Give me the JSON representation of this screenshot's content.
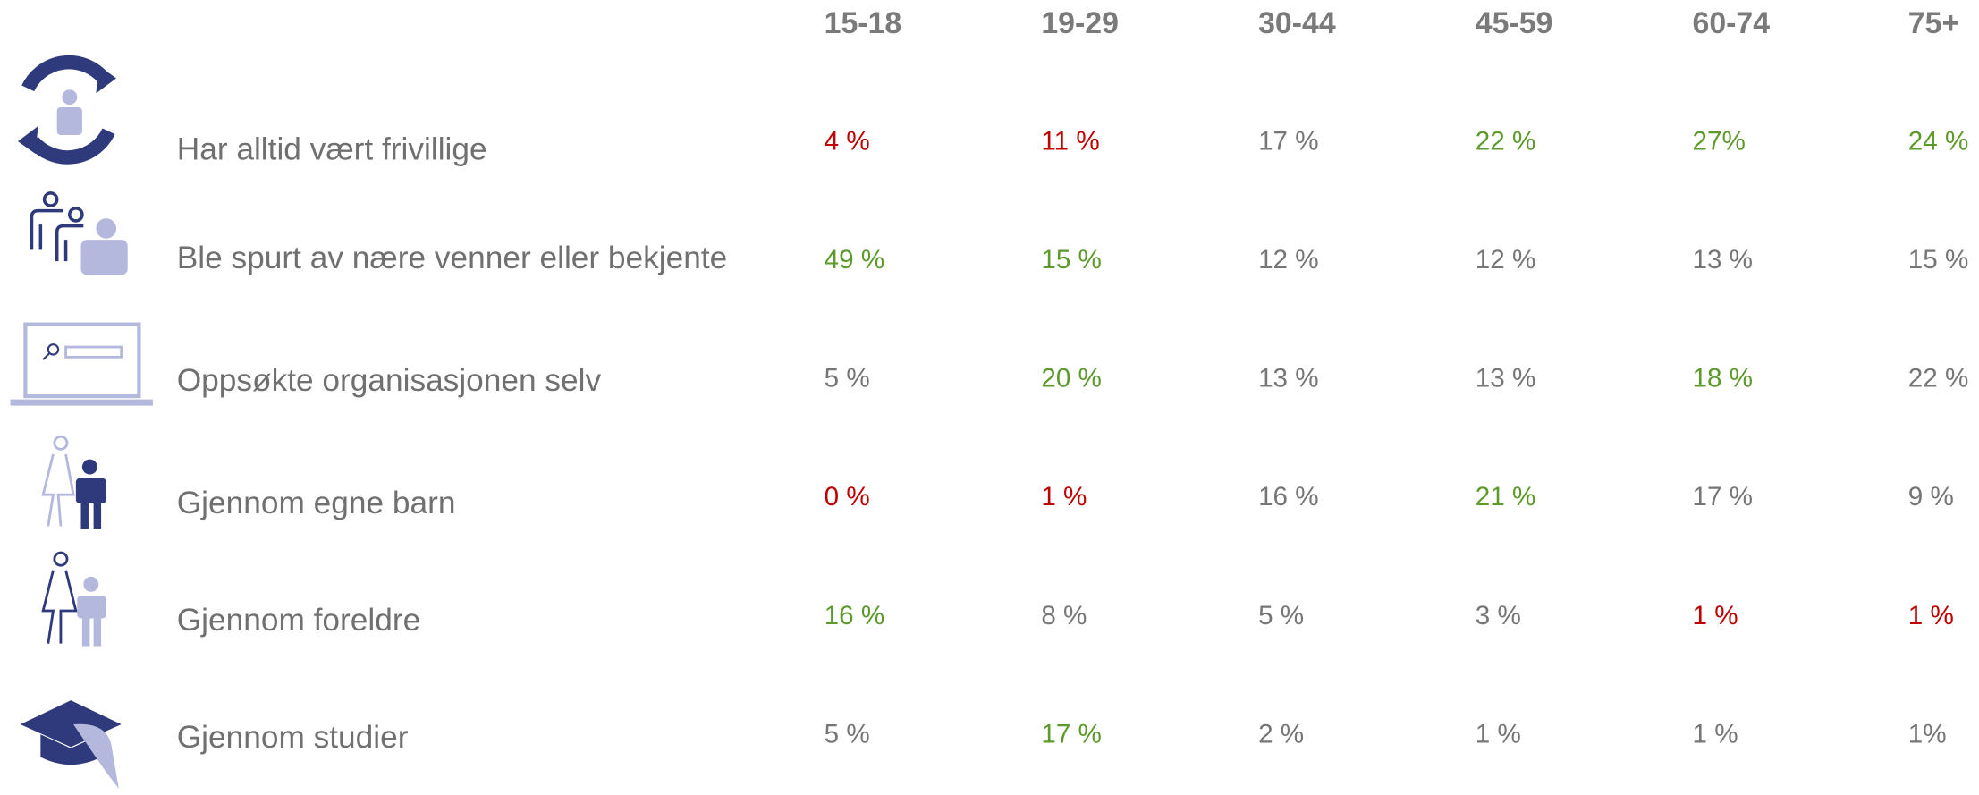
{
  "table": {
    "columns": [
      "15-18",
      "19-29",
      "30-44",
      "45-59",
      "60-74",
      "75+"
    ],
    "rows": [
      {
        "label": "Har alltid vært frivillige",
        "cells": [
          "4 %",
          "11 %",
          "17 %",
          "22 %",
          "27%",
          "24 %"
        ],
        "colors": [
          "#c00000",
          "#c00000",
          "#767676",
          "#5b9a2b",
          "#5b9a2b",
          "#5b9a2b"
        ]
      },
      {
        "label": "Ble spurt av nære venner eller bekjente",
        "cells": [
          "49 %",
          "15 %",
          "12 %",
          "12 %",
          "13 %",
          "15 %"
        ],
        "colors": [
          "#5b9a2b",
          "#5b9a2b",
          "#767676",
          "#767676",
          "#767676",
          "#767676"
        ]
      },
      {
        "label": "Oppsøkte organisasjonen selv",
        "cells": [
          "5 %",
          "20 %",
          "13 %",
          "13 %",
          "18 %",
          "22 %"
        ],
        "colors": [
          "#767676",
          "#5b9a2b",
          "#767676",
          "#767676",
          "#5b9a2b",
          "#767676"
        ]
      },
      {
        "label": "Gjennom egne barn",
        "cells": [
          "0 %",
          "1 %",
          "16 %",
          "21 %",
          "17 %",
          "9 %"
        ],
        "colors": [
          "#c00000",
          "#c00000",
          "#767676",
          "#5b9a2b",
          "#767676",
          "#767676"
        ]
      },
      {
        "label": "Gjennom foreldre",
        "cells": [
          "16 %",
          "8 %",
          "5 %",
          "3 %",
          "1 %",
          "1 %"
        ],
        "colors": [
          "#5b9a2b",
          "#767676",
          "#767676",
          "#767676",
          "#c00000",
          "#c00000"
        ]
      },
      {
        "label": "Gjennom studier",
        "cells": [
          "5 %",
          "17 %",
          "2 %",
          "1 %",
          "1 %",
          "1%"
        ],
        "colors": [
          "#767676",
          "#5b9a2b",
          "#767676",
          "#767676",
          "#767676",
          "#767676"
        ]
      }
    ]
  }
}
